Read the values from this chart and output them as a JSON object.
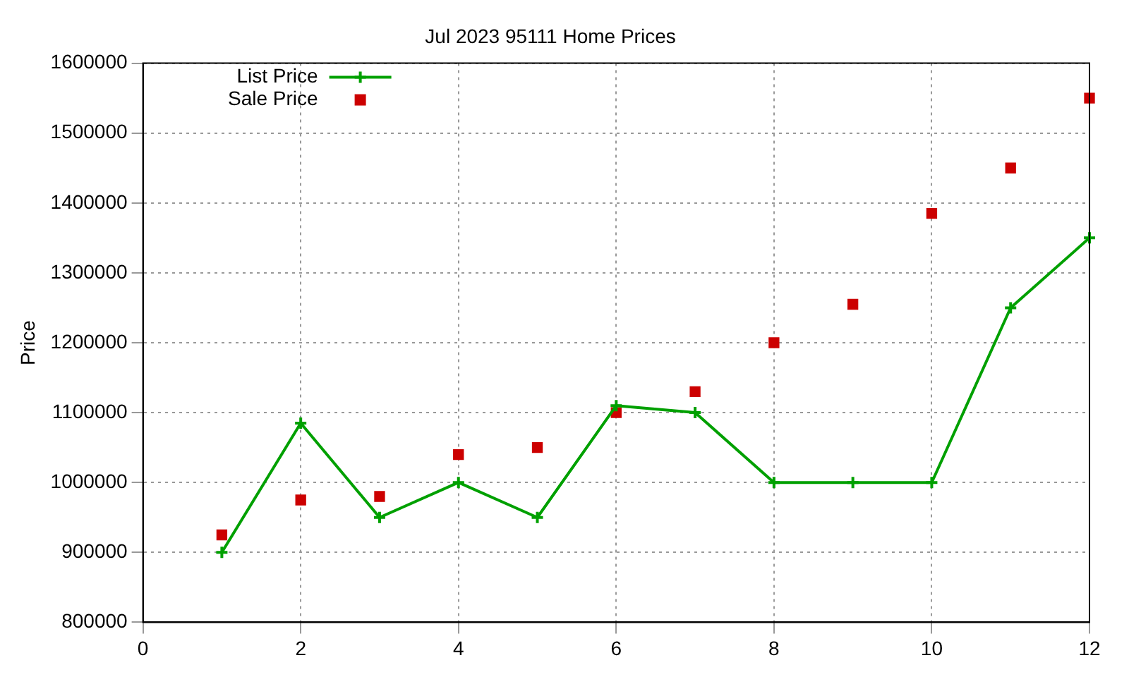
{
  "chart_data": {
    "type": "line",
    "title": "Jul 2023 95111 Home Prices",
    "ylabel": "Price",
    "x": [
      1,
      2,
      3,
      4,
      5,
      6,
      7,
      8,
      9,
      10,
      11,
      12
    ],
    "series": [
      {
        "name": "List Price",
        "color": "#00a000",
        "marker": "cross",
        "values": [
          900000,
          1085000,
          950000,
          1000000,
          950000,
          1110000,
          1100000,
          1000000,
          1000000,
          1000000,
          1250000,
          1350000
        ]
      },
      {
        "name": "Sale Price",
        "color": "#cc0000",
        "type": "scatter",
        "marker": "square",
        "values": [
          925000,
          975000,
          980000,
          1040000,
          1050000,
          1100000,
          1130000,
          1200000,
          1255000,
          1385000,
          1450000,
          1550000
        ]
      }
    ],
    "xlim": [
      0,
      12
    ],
    "xticks": [
      0,
      2,
      4,
      6,
      8,
      10,
      12
    ],
    "ylim": [
      800000,
      1600000
    ],
    "yticks": [
      800000,
      900000,
      1000000,
      1100000,
      1200000,
      1300000,
      1400000,
      1500000,
      1600000
    ],
    "grid": true,
    "legend": "top left",
    "line_style": "solid"
  }
}
